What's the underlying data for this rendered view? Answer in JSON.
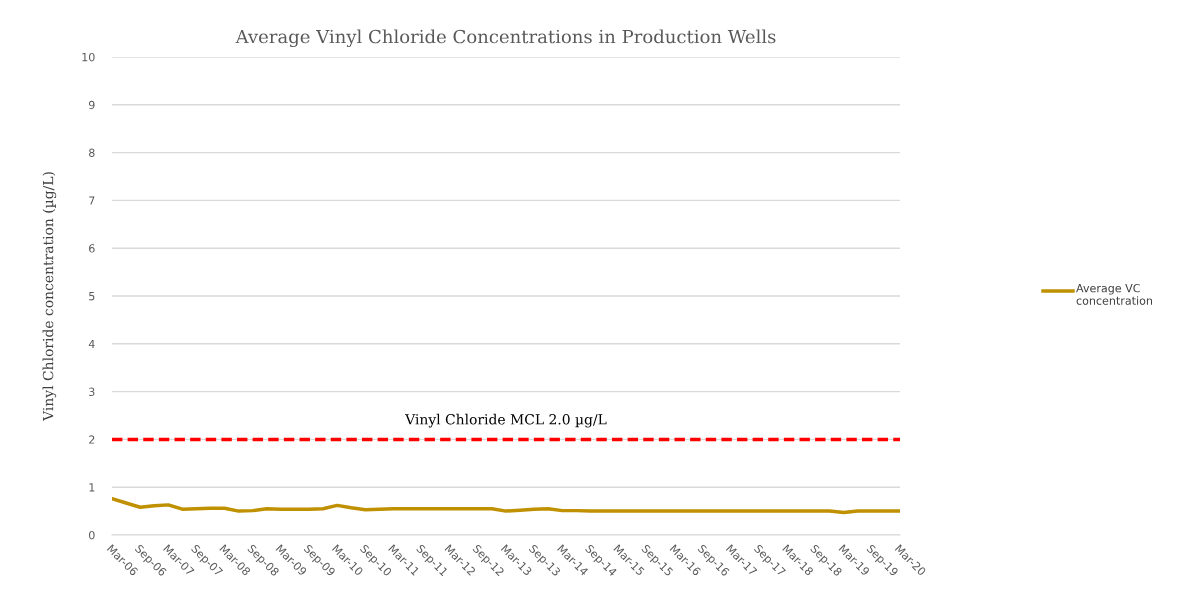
{
  "chart_data": {
    "type": "line",
    "title": "Average Vinyl Chloride Concentrations in Production Wells",
    "ylabel": "Vinyl Chloride concentration (µg/L)",
    "categories": [
      "Mar-06",
      null,
      "Sep-06",
      null,
      "Mar-07",
      null,
      "Sep-07",
      null,
      "Mar-08",
      null,
      "Sep-08",
      null,
      "Mar-09",
      null,
      "Sep-09",
      null,
      "Mar-10",
      null,
      "Sep-10",
      null,
      "Mar-11",
      null,
      "Sep-11",
      null,
      "Mar-12",
      null,
      "Sep-12",
      null,
      "Mar-13",
      null,
      "Sep-13",
      null,
      "Mar-14",
      null,
      "Sep-14",
      null,
      "Mar-15",
      null,
      "Sep-15",
      null,
      "Mar-16",
      null,
      "Sep-16",
      null,
      "Mar-17",
      null,
      "Sep-17",
      null,
      "Mar-18",
      null,
      "Sep-18",
      null,
      "Mar-19",
      null,
      "Sep-19",
      null,
      "Mar-20"
    ],
    "series": [
      {
        "name": "Average VC concentration",
        "color": "#bf9000",
        "values": [
          0.76,
          0.67,
          0.58,
          0.61,
          0.63,
          0.54,
          0.55,
          0.56,
          0.56,
          0.5,
          0.51,
          0.55,
          0.54,
          0.54,
          0.54,
          0.55,
          0.62,
          0.57,
          0.53,
          0.54,
          0.55,
          0.55,
          0.55,
          0.55,
          0.55,
          0.55,
          0.55,
          0.55,
          0.5,
          0.52,
          0.54,
          0.55,
          0.51,
          0.51,
          0.5,
          0.5,
          0.5,
          0.5,
          0.5,
          0.5,
          0.5,
          0.5,
          0.5,
          0.5,
          0.5,
          0.5,
          0.5,
          0.5,
          0.5,
          0.5,
          0.5,
          0.5,
          0.47,
          0.5,
          0.5,
          0.5,
          0.5
        ]
      }
    ],
    "ylim": [
      0,
      10
    ],
    "yticks": [
      0,
      1,
      2,
      3,
      4,
      5,
      6,
      7,
      8,
      9,
      10
    ],
    "grid": "y",
    "legend": "right",
    "line_style": "solid",
    "marker": "none",
    "ref_lines": [
      {
        "axis": "y",
        "value": 2,
        "label": "Vinyl Chloride MCL 2.0 µg/L",
        "color": "#ff0000",
        "line_style": "dashed"
      }
    ]
  }
}
